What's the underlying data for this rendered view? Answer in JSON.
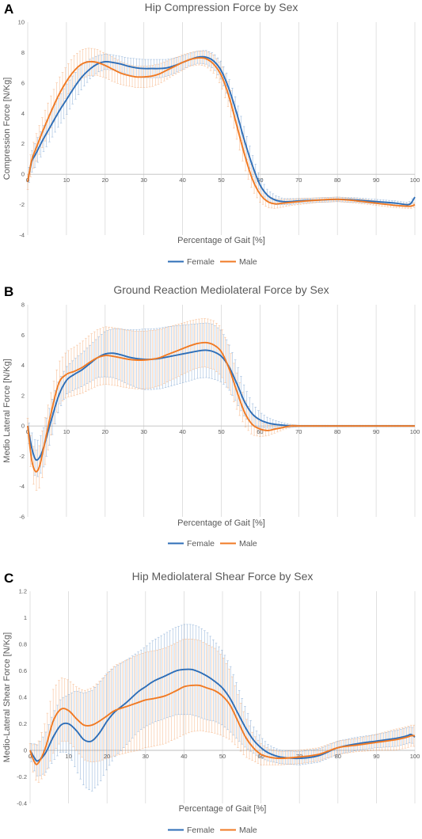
{
  "colors": {
    "female": "#2E6EB7",
    "male": "#F07A24",
    "grid": "#D9D9D9",
    "text": "#595959"
  },
  "chart_data": [
    {
      "type": "line",
      "panel_letter": "A",
      "title": "Hip Compression Force by Sex",
      "xlabel": "Percentage of Gait [%]",
      "ylabel": "Compression Force [N/Kg]",
      "xlim": [
        0,
        100
      ],
      "ylim": [
        -4,
        10
      ],
      "x_ticks": [
        0,
        10,
        20,
        30,
        40,
        50,
        60,
        70,
        80,
        90,
        100
      ],
      "y_ticks": [
        -4,
        -2,
        0,
        2,
        4,
        6,
        8,
        10
      ],
      "grid": "vertical",
      "error_bars": true,
      "legend_position": "bottom",
      "x": [
        0,
        1,
        2,
        4,
        6,
        8,
        10,
        12,
        14,
        16,
        18,
        20,
        22,
        24,
        26,
        28,
        30,
        32,
        34,
        36,
        38,
        40,
        42,
        44,
        46,
        48,
        50,
        52,
        54,
        56,
        58,
        60,
        62,
        64,
        66,
        68,
        70,
        75,
        80,
        85,
        90,
        95,
        98,
        99,
        100
      ],
      "series": [
        {
          "name": "Female",
          "values": [
            -0.5,
            0.8,
            1.3,
            2.3,
            3.2,
            4.1,
            4.9,
            5.7,
            6.4,
            6.9,
            7.25,
            7.4,
            7.35,
            7.25,
            7.1,
            7.0,
            6.95,
            6.95,
            6.95,
            7.0,
            7.15,
            7.35,
            7.55,
            7.7,
            7.7,
            7.45,
            6.8,
            5.6,
            4.0,
            2.2,
            0.6,
            -0.7,
            -1.4,
            -1.7,
            -1.8,
            -1.8,
            -1.75,
            -1.7,
            -1.65,
            -1.7,
            -1.8,
            -1.9,
            -2.0,
            -1.9,
            -1.5
          ],
          "errors": [
            0.4,
            0.7,
            0.8,
            0.85,
            0.9,
            0.95,
            1.0,
            0.9,
            0.8,
            0.65,
            0.55,
            0.5,
            0.5,
            0.5,
            0.55,
            0.6,
            0.6,
            0.6,
            0.6,
            0.55,
            0.5,
            0.45,
            0.4,
            0.4,
            0.45,
            0.5,
            0.6,
            0.7,
            0.8,
            0.8,
            0.7,
            0.5,
            0.35,
            0.3,
            0.2,
            0.2,
            0.15,
            0.15,
            0.15,
            0.15,
            0.15,
            0.15,
            0.15,
            0.15,
            0.15
          ]
        },
        {
          "name": "Male",
          "values": [
            -0.5,
            0.9,
            1.6,
            2.9,
            4.1,
            5.2,
            6.1,
            6.8,
            7.25,
            7.4,
            7.35,
            7.15,
            6.9,
            6.65,
            6.5,
            6.4,
            6.4,
            6.45,
            6.6,
            6.85,
            7.1,
            7.35,
            7.55,
            7.65,
            7.6,
            7.25,
            6.5,
            5.1,
            3.2,
            1.3,
            -0.3,
            -1.3,
            -1.8,
            -1.95,
            -1.9,
            -1.85,
            -1.8,
            -1.7,
            -1.65,
            -1.75,
            -1.9,
            -2.05,
            -2.1,
            -2.1,
            -2.0
          ],
          "errors": [
            0.5,
            0.8,
            0.9,
            1.0,
            1.05,
            1.1,
            1.0,
            1.0,
            0.95,
            0.9,
            0.85,
            0.8,
            0.8,
            0.75,
            0.7,
            0.7,
            0.7,
            0.7,
            0.65,
            0.6,
            0.55,
            0.5,
            0.45,
            0.45,
            0.5,
            0.6,
            0.7,
            0.85,
            0.9,
            0.9,
            0.75,
            0.55,
            0.4,
            0.3,
            0.25,
            0.2,
            0.2,
            0.15,
            0.15,
            0.15,
            0.15,
            0.15,
            0.15,
            0.15,
            0.15
          ]
        }
      ]
    },
    {
      "type": "line",
      "panel_letter": "B",
      "title": "Ground Reaction Mediolateral Force by Sex",
      "xlabel": "Percentage of Gait [%]",
      "ylabel": "Medio Lateral Force [N/Kg]",
      "xlim": [
        0,
        100
      ],
      "ylim": [
        -6,
        8
      ],
      "x_ticks": [
        0,
        10,
        20,
        30,
        40,
        50,
        60,
        70,
        80,
        90,
        100
      ],
      "y_ticks": [
        -6,
        -4,
        -2,
        0,
        2,
        4,
        6,
        8
      ],
      "grid": "vertical",
      "error_bars": true,
      "legend_position": "bottom",
      "x": [
        0,
        1,
        2,
        3,
        4,
        6,
        8,
        10,
        12,
        14,
        16,
        18,
        20,
        22,
        24,
        26,
        28,
        30,
        32,
        34,
        36,
        38,
        40,
        42,
        44,
        46,
        48,
        50,
        52,
        54,
        56,
        58,
        60,
        62,
        64,
        66,
        68,
        70,
        75,
        80,
        90,
        100
      ],
      "series": [
        {
          "name": "Female",
          "values": [
            0,
            -1.4,
            -2.2,
            -2.1,
            -1.5,
            0.3,
            2.0,
            3.0,
            3.4,
            3.7,
            4.1,
            4.5,
            4.75,
            4.8,
            4.7,
            4.55,
            4.45,
            4.4,
            4.4,
            4.45,
            4.55,
            4.65,
            4.75,
            4.85,
            4.95,
            5.0,
            4.9,
            4.6,
            3.9,
            2.8,
            1.6,
            0.8,
            0.4,
            0.2,
            0.1,
            0.05,
            0,
            0,
            0,
            0,
            0,
            0
          ],
          "errors": [
            0.5,
            1.0,
            1.2,
            1.2,
            1.3,
            1.2,
            1.0,
            0.9,
            1.0,
            1.1,
            1.2,
            1.3,
            1.5,
            1.6,
            1.7,
            1.8,
            1.9,
            2.0,
            2.0,
            2.0,
            2.0,
            1.95,
            1.9,
            1.85,
            1.8,
            1.8,
            1.8,
            1.7,
            1.5,
            1.3,
            1.0,
            0.7,
            0.5,
            0.35,
            0.25,
            0.15,
            0.1,
            0.05,
            0.05,
            0.05,
            0.05,
            0.05
          ]
        },
        {
          "name": "Male",
          "values": [
            0,
            -2.2,
            -3.0,
            -2.7,
            -1.6,
            0.8,
            2.8,
            3.4,
            3.6,
            3.85,
            4.2,
            4.5,
            4.65,
            4.6,
            4.5,
            4.4,
            4.35,
            4.35,
            4.4,
            4.5,
            4.7,
            4.9,
            5.1,
            5.3,
            5.45,
            5.5,
            5.35,
            4.9,
            3.8,
            2.3,
            0.9,
            0.1,
            -0.2,
            -0.3,
            -0.2,
            -0.1,
            0,
            0,
            0,
            0,
            0,
            0
          ],
          "errors": [
            0.5,
            1.2,
            1.3,
            1.4,
            1.6,
            1.4,
            1.4,
            1.5,
            1.6,
            1.7,
            1.8,
            1.85,
            1.9,
            1.9,
            1.9,
            1.9,
            1.9,
            1.9,
            1.9,
            1.85,
            1.8,
            1.75,
            1.7,
            1.65,
            1.6,
            1.6,
            1.6,
            1.6,
            1.4,
            1.2,
            0.9,
            0.7,
            0.5,
            0.35,
            0.25,
            0.15,
            0.1,
            0.05,
            0.05,
            0.05,
            0.05,
            0.05
          ]
        }
      ]
    },
    {
      "type": "line",
      "panel_letter": "C",
      "title": "Hip Mediolateral Shear Force by Sex",
      "xlabel": "Percentage of Gait [%]",
      "ylabel": "Medio-Lateral Shear Force [N/Kg]",
      "xlim": [
        0,
        100
      ],
      "ylim": [
        -0.4,
        1.2
      ],
      "x_ticks": [
        0,
        10,
        20,
        30,
        40,
        50,
        60,
        70,
        80,
        90,
        100
      ],
      "y_ticks": [
        -0.4,
        -0.2,
        0,
        0.2,
        0.4,
        0.6,
        0.8,
        1,
        1.2
      ],
      "grid": "vertical",
      "error_bars": true,
      "legend_position": "bottom",
      "x": [
        0,
        1,
        2,
        4,
        6,
        8,
        10,
        12,
        14,
        16,
        18,
        20,
        22,
        25,
        28,
        30,
        32,
        35,
        38,
        40,
        42,
        44,
        46,
        48,
        50,
        52,
        54,
        56,
        58,
        60,
        62,
        65,
        70,
        75,
        80,
        85,
        90,
        95,
        98,
        99,
        100
      ],
      "series": [
        {
          "name": "Female",
          "values": [
            0,
            -0.05,
            -0.08,
            -0.02,
            0.1,
            0.19,
            0.2,
            0.15,
            0.08,
            0.07,
            0.13,
            0.22,
            0.29,
            0.36,
            0.44,
            0.48,
            0.52,
            0.56,
            0.6,
            0.61,
            0.61,
            0.59,
            0.56,
            0.52,
            0.47,
            0.39,
            0.28,
            0.17,
            0.08,
            0.02,
            -0.02,
            -0.05,
            -0.06,
            -0.04,
            0.02,
            0.05,
            0.07,
            0.09,
            0.11,
            0.12,
            0.1
          ],
          "errors": [
            0.05,
            0.1,
            0.12,
            0.15,
            0.18,
            0.2,
            0.22,
            0.3,
            0.35,
            0.38,
            0.38,
            0.36,
            0.34,
            0.32,
            0.3,
            0.3,
            0.31,
            0.32,
            0.33,
            0.34,
            0.34,
            0.34,
            0.33,
            0.3,
            0.28,
            0.25,
            0.2,
            0.15,
            0.1,
            0.08,
            0.06,
            0.05,
            0.05,
            0.05,
            0.05,
            0.05,
            0.05,
            0.06,
            0.06,
            0.06,
            0.06
          ]
        },
        {
          "name": "Male",
          "values": [
            0,
            -0.08,
            -0.1,
            0.02,
            0.22,
            0.31,
            0.3,
            0.24,
            0.19,
            0.19,
            0.22,
            0.26,
            0.3,
            0.33,
            0.36,
            0.38,
            0.39,
            0.41,
            0.45,
            0.48,
            0.49,
            0.49,
            0.47,
            0.45,
            0.41,
            0.34,
            0.22,
            0.1,
            0.02,
            -0.03,
            -0.05,
            -0.06,
            -0.05,
            -0.03,
            0.02,
            0.04,
            0.06,
            0.08,
            0.1,
            0.11,
            0.11
          ],
          "errors": [
            0.05,
            0.12,
            0.15,
            0.2,
            0.24,
            0.24,
            0.23,
            0.24,
            0.26,
            0.28,
            0.3,
            0.32,
            0.34,
            0.35,
            0.36,
            0.36,
            0.36,
            0.36,
            0.36,
            0.36,
            0.35,
            0.34,
            0.33,
            0.32,
            0.3,
            0.26,
            0.2,
            0.15,
            0.1,
            0.08,
            0.06,
            0.05,
            0.05,
            0.05,
            0.05,
            0.05,
            0.06,
            0.08,
            0.08,
            0.08,
            0.08
          ]
        }
      ]
    }
  ]
}
